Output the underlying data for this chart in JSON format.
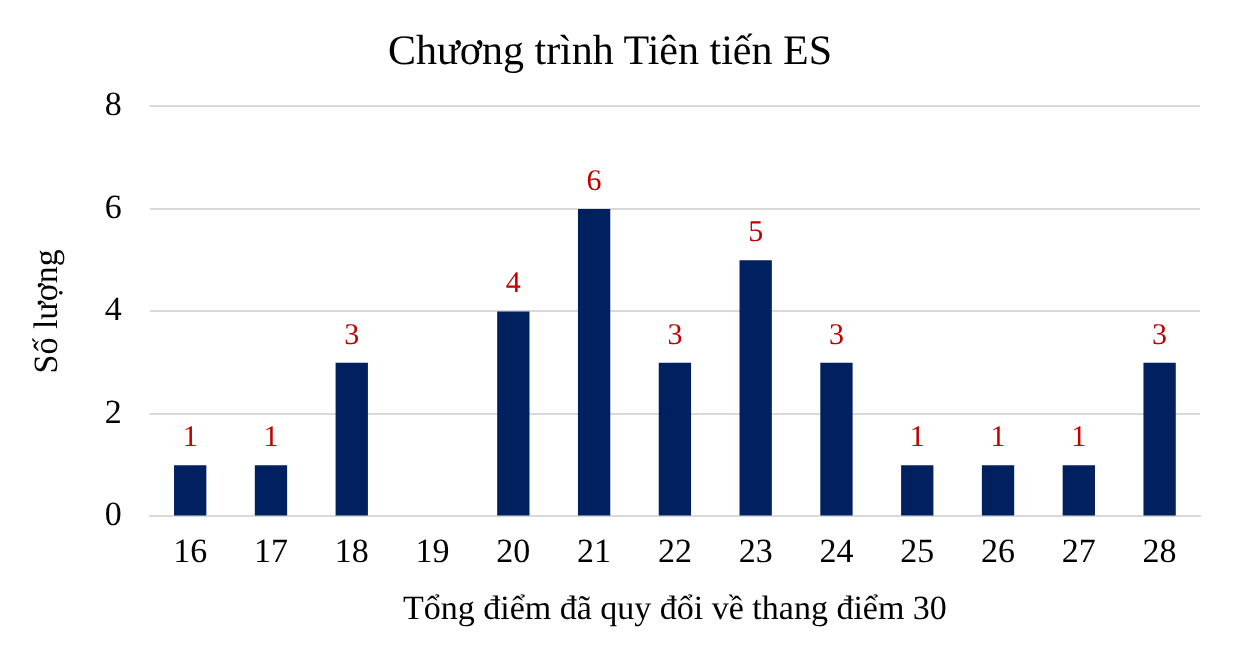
{
  "chart_data": {
    "type": "bar",
    "title": "Chương trình Tiên tiến ES",
    "xlabel": "Tổng điểm đã quy đổi về thang điểm 30",
    "ylabel": "Số lượng",
    "categories": [
      "16",
      "17",
      "18",
      "19",
      "20",
      "21",
      "22",
      "23",
      "24",
      "25",
      "26",
      "27",
      "28"
    ],
    "values": [
      1,
      1,
      3,
      0,
      4,
      6,
      3,
      5,
      3,
      1,
      1,
      1,
      3
    ],
    "value_labels": [
      "1",
      "1",
      "3",
      null,
      "4",
      "6",
      "3",
      "5",
      "3",
      "1",
      "1",
      "1",
      "3"
    ],
    "color": "#002060",
    "ylim": [
      0,
      8
    ],
    "yticks": [
      0,
      2,
      4,
      6,
      8
    ],
    "grid": "y",
    "legend": false
  }
}
